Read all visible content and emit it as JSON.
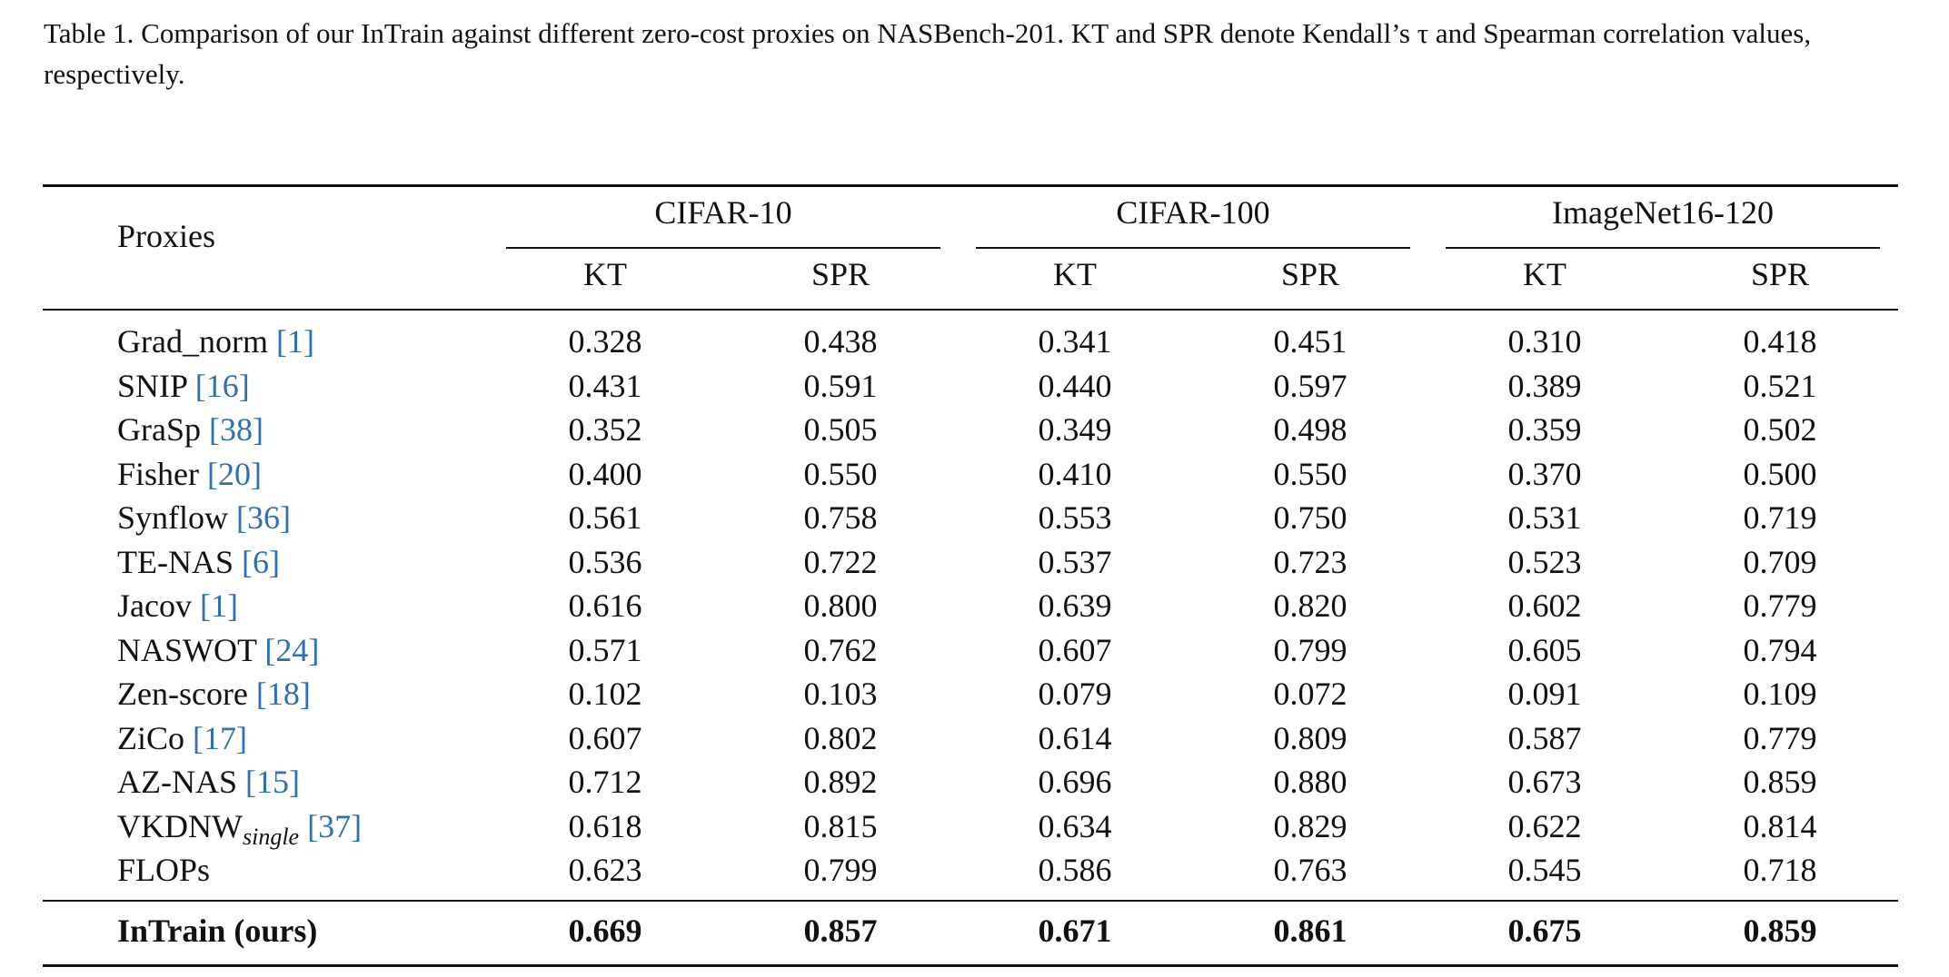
{
  "caption": "Table 1. Comparison of our InTrain against different zero-cost proxies on NASBench-201. KT and SPR denote Kendall’s τ and Spearman correlation values, respectively.",
  "header": {
    "proxies": "Proxies",
    "groups": [
      "CIFAR-10",
      "CIFAR-100",
      "ImageNet16-120"
    ],
    "sub": [
      "KT",
      "SPR",
      "KT",
      "SPR",
      "KT",
      "SPR"
    ]
  },
  "rows": [
    {
      "name": "Grad_norm",
      "sub": "",
      "ref": "[1]",
      "values": [
        "0.328",
        "0.438",
        "0.341",
        "0.451",
        "0.310",
        "0.418"
      ]
    },
    {
      "name": "SNIP",
      "sub": "",
      "ref": "[16]",
      "values": [
        "0.431",
        "0.591",
        "0.440",
        "0.597",
        "0.389",
        "0.521"
      ]
    },
    {
      "name": "GraSp",
      "sub": "",
      "ref": "[38]",
      "values": [
        "0.352",
        "0.505",
        "0.349",
        "0.498",
        "0.359",
        "0.502"
      ]
    },
    {
      "name": "Fisher",
      "sub": "",
      "ref": "[20]",
      "values": [
        "0.400",
        "0.550",
        "0.410",
        "0.550",
        "0.370",
        "0.500"
      ]
    },
    {
      "name": "Synflow",
      "sub": "",
      "ref": "[36]",
      "values": [
        "0.561",
        "0.758",
        "0.553",
        "0.750",
        "0.531",
        "0.719"
      ]
    },
    {
      "name": "TE-NAS",
      "sub": "",
      "ref": "[6]",
      "values": [
        "0.536",
        "0.722",
        "0.537",
        "0.723",
        "0.523",
        "0.709"
      ]
    },
    {
      "name": "Jacov",
      "sub": "",
      "ref": "[1]",
      "values": [
        "0.616",
        "0.800",
        "0.639",
        "0.820",
        "0.602",
        "0.779"
      ]
    },
    {
      "name": "NASWOT",
      "sub": "",
      "ref": "[24]",
      "values": [
        "0.571",
        "0.762",
        "0.607",
        "0.799",
        "0.605",
        "0.794"
      ]
    },
    {
      "name": "Zen-score",
      "sub": "",
      "ref": "[18]",
      "values": [
        "0.102",
        "0.103",
        "0.079",
        "0.072",
        "0.091",
        "0.109"
      ]
    },
    {
      "name": "ZiCo",
      "sub": "",
      "ref": "[17]",
      "values": [
        "0.607",
        "0.802",
        "0.614",
        "0.809",
        "0.587",
        "0.779"
      ]
    },
    {
      "name": "AZ-NAS",
      "sub": "",
      "ref": "[15]",
      "values": [
        "0.712",
        "0.892",
        "0.696",
        "0.880",
        "0.673",
        "0.859"
      ]
    },
    {
      "name": "VKDNW",
      "sub": "single",
      "ref": "[37]",
      "values": [
        "0.618",
        "0.815",
        "0.634",
        "0.829",
        "0.622",
        "0.814"
      ]
    },
    {
      "name": "FLOPs",
      "sub": "",
      "ref": "",
      "values": [
        "0.623",
        "0.799",
        "0.586",
        "0.763",
        "0.545",
        "0.718"
      ]
    }
  ],
  "ours": {
    "name": "InTrain (ours)",
    "values": [
      "0.669",
      "0.857",
      "0.671",
      "0.861",
      "0.675",
      "0.859"
    ]
  }
}
